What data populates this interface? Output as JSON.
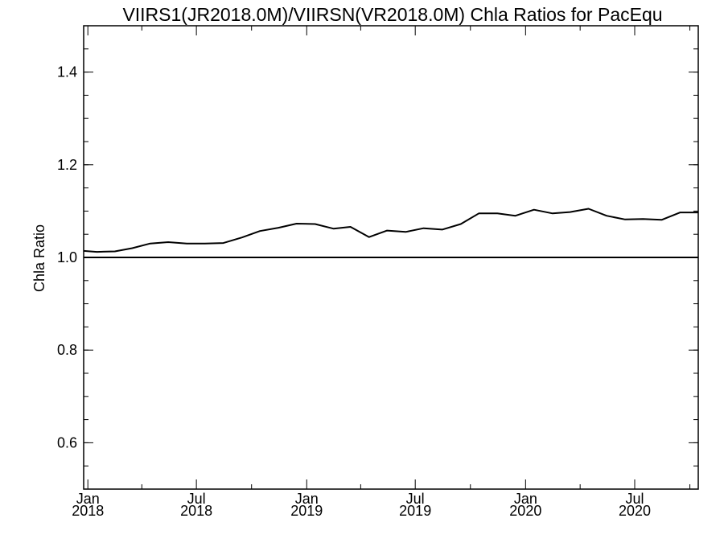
{
  "chart_data": {
    "type": "line",
    "title": "VIIRS1(JR2018.0M)/VIIRSN(VR2018.0M)  Chla Ratios for PacEqu",
    "xlabel": "",
    "ylabel": "Chla Ratio",
    "xlim": [
      "2017-12-25",
      "2020-10-15"
    ],
    "ylim": [
      0.5,
      1.5
    ],
    "yticks": [
      {
        "value": 0.6,
        "label": "0.6"
      },
      {
        "value": 0.8,
        "label": "0.8"
      },
      {
        "value": 1.0,
        "label": "1.0"
      },
      {
        "value": 1.2,
        "label": "1.2"
      },
      {
        "value": 1.4,
        "label": "1.4"
      }
    ],
    "xticks": [
      {
        "date": "2018-01-01",
        "month": "Jan",
        "year": "2018"
      },
      {
        "date": "2018-07-01",
        "month": "Jul",
        "year": "2018"
      },
      {
        "date": "2019-01-01",
        "month": "Jan",
        "year": "2019"
      },
      {
        "date": "2019-07-01",
        "month": "Jul",
        "year": "2019"
      },
      {
        "date": "2020-01-01",
        "month": "Jan",
        "year": "2020"
      },
      {
        "date": "2020-07-01",
        "month": "Jul",
        "year": "2020"
      }
    ],
    "reference_line": 1.0,
    "series": [
      {
        "name": "",
        "x": [
          "2017-12-25",
          "2018-01-16",
          "2018-02-15",
          "2018-03-16",
          "2018-04-15",
          "2018-05-15",
          "2018-06-15",
          "2018-07-15",
          "2018-08-15",
          "2018-09-15",
          "2018-10-15",
          "2018-11-15",
          "2018-12-15",
          "2019-01-15",
          "2019-02-15",
          "2019-03-15",
          "2019-04-15",
          "2019-05-15",
          "2019-06-15",
          "2019-07-15",
          "2019-08-15",
          "2019-09-15",
          "2019-10-15",
          "2019-11-15",
          "2019-12-15",
          "2020-01-15",
          "2020-02-15",
          "2020-03-15",
          "2020-04-15",
          "2020-05-15",
          "2020-06-15",
          "2020-07-15",
          "2020-08-15",
          "2020-09-15",
          "2020-10-15"
        ],
        "values": [
          1.014,
          1.012,
          1.013,
          1.02,
          1.03,
          1.033,
          1.03,
          1.03,
          1.031,
          1.043,
          1.057,
          1.064,
          1.073,
          1.072,
          1.062,
          1.066,
          1.044,
          1.058,
          1.055,
          1.063,
          1.06,
          1.072,
          1.095,
          1.095,
          1.09,
          1.103,
          1.095,
          1.098,
          1.105,
          1.09,
          1.082,
          1.083,
          1.081,
          1.097,
          1.097
        ]
      }
    ]
  }
}
